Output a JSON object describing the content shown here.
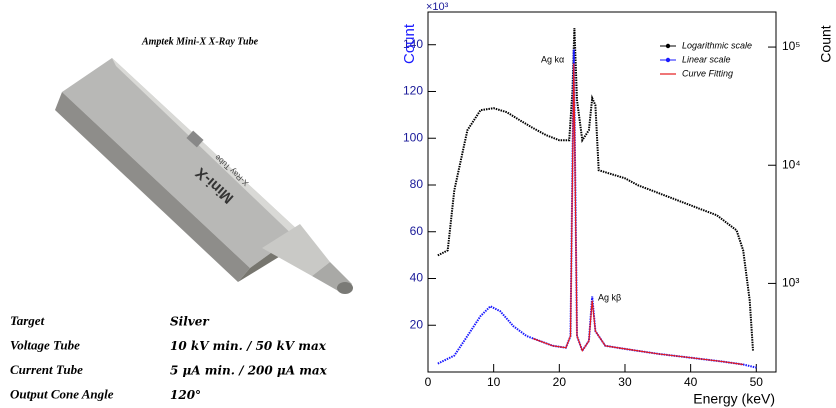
{
  "figure": {
    "caption": "Amptek Mini-X X-Ray Tube",
    "specs": [
      [
        "Target",
        "Silver"
      ],
      [
        "Voltage Tube",
        "10 kV min. / 50 kV max"
      ],
      [
        "Current Tube",
        "5 μA min. / 200 μA max"
      ],
      [
        "Output Cone Angle",
        "120°"
      ]
    ],
    "device_label": "Mini-X",
    "device_sublabel": "X-Ray Tube"
  },
  "chart_data": {
    "type": "line",
    "xlabel": "Energy (keV)",
    "ylabel": "Count",
    "y2label": "Count",
    "multiplier": "×10³",
    "xlim": [
      0,
      53
    ],
    "xticks": [
      0,
      10,
      20,
      30,
      40,
      50
    ],
    "ylim": [
      0,
      154
    ],
    "yticks": [
      20,
      40,
      60,
      80,
      100,
      120,
      140
    ],
    "y2lim": [
      178,
      198000
    ],
    "y2log": true,
    "y2ticks": [
      {
        "value": 1000,
        "label": "10³"
      },
      {
        "value": 10000,
        "label": "10⁴"
      },
      {
        "value": 100000,
        "label": "10⁵"
      }
    ],
    "legend": "upper right",
    "annotations": [
      "Ag kα",
      "Ag kβ"
    ],
    "series": [
      {
        "name": "Logarithmic scale",
        "color": "#000000",
        "axis": "y2",
        "x": [
          1.5,
          3,
          4,
          6,
          8,
          10,
          12,
          14,
          16,
          18,
          20,
          21.5,
          22,
          22.3,
          22.7,
          23.5,
          24.5,
          25,
          25.5,
          26,
          30,
          32,
          36,
          40,
          44,
          47,
          48,
          49,
          49.5
        ],
        "values": [
          1727,
          1903,
          6140,
          19800,
          29200,
          30400,
          28100,
          24000,
          20600,
          17960,
          16300,
          16300,
          43200,
          145000,
          35600,
          16300,
          19800,
          37000,
          32200,
          9080,
          7760,
          6760,
          5570,
          4580,
          3770,
          2810,
          1900,
          718,
          270
        ]
      },
      {
        "name": "Linear scale",
        "color": "#1a1aff",
        "x": [
          1.5,
          4,
          6,
          8,
          9.5,
          11,
          13,
          15,
          17,
          19,
          21,
          21.7,
          22.2,
          22.7,
          23.5,
          24.5,
          25,
          25.5,
          27,
          30,
          35,
          40,
          45,
          48,
          50
        ],
        "values": [
          3.6,
          7.0,
          15.4,
          23.9,
          28.1,
          26,
          19.6,
          15.4,
          13.3,
          11.2,
          10.4,
          15.4,
          138,
          15.4,
          9.1,
          13.3,
          32.3,
          17.5,
          11.2,
          9.9,
          7.8,
          6.1,
          4.4,
          3.2,
          1.9
        ]
      },
      {
        "name": "Curve Fitting",
        "color": "#e41a1c",
        "x": [
          16,
          19,
          21,
          21.7,
          22.2,
          22.7,
          23.5,
          24.5,
          25,
          25.5,
          27,
          30,
          35,
          40,
          45,
          48
        ],
        "values": [
          14.3,
          11.2,
          10.4,
          15.4,
          132,
          15.4,
          9.1,
          13.3,
          30.5,
          17.5,
          11.2,
          9.9,
          7.8,
          6.1,
          4.4,
          3.2
        ]
      }
    ]
  }
}
